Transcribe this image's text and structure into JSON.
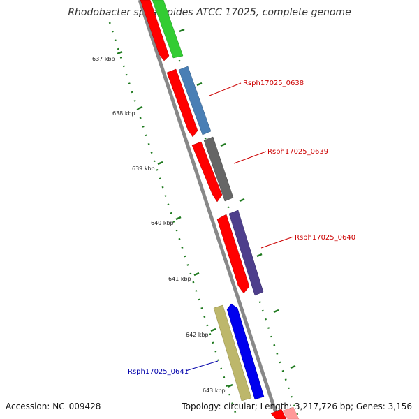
{
  "title": "Rhodobacter sphaeroides ATCC 17025, complete genome",
  "accession": "Accession: NC_009428",
  "summary": "Topology: circular; Length: 3,217,726 bp; Genes: 3,156",
  "ruler_labels": [
    "637 kbp",
    "638 kbp",
    "639 kbp",
    "640 kbp",
    "641 kbp",
    "642 kbp",
    "643 kbp"
  ],
  "gene_labels": [
    {
      "text": "Rsph17025_0638",
      "color": "#cc0000"
    },
    {
      "text": "Rsph17025_0639",
      "color": "#cc0000"
    },
    {
      "text": "Rsph17025_0640",
      "color": "#cc0000"
    },
    {
      "text": "Rsph17025_0641",
      "color": "#0000aa"
    }
  ],
  "colors": {
    "cds": "#ff0000",
    "gene_green": "#33cc33",
    "gene_steelblue": "#4a7fb5",
    "gene_gray": "#666666",
    "gene_purple": "#4e3f8c",
    "gene_blue": "#0000ee",
    "gene_khaki": "#bdb76b",
    "backbone": "#888888",
    "ruler": "#1f7a1f"
  }
}
